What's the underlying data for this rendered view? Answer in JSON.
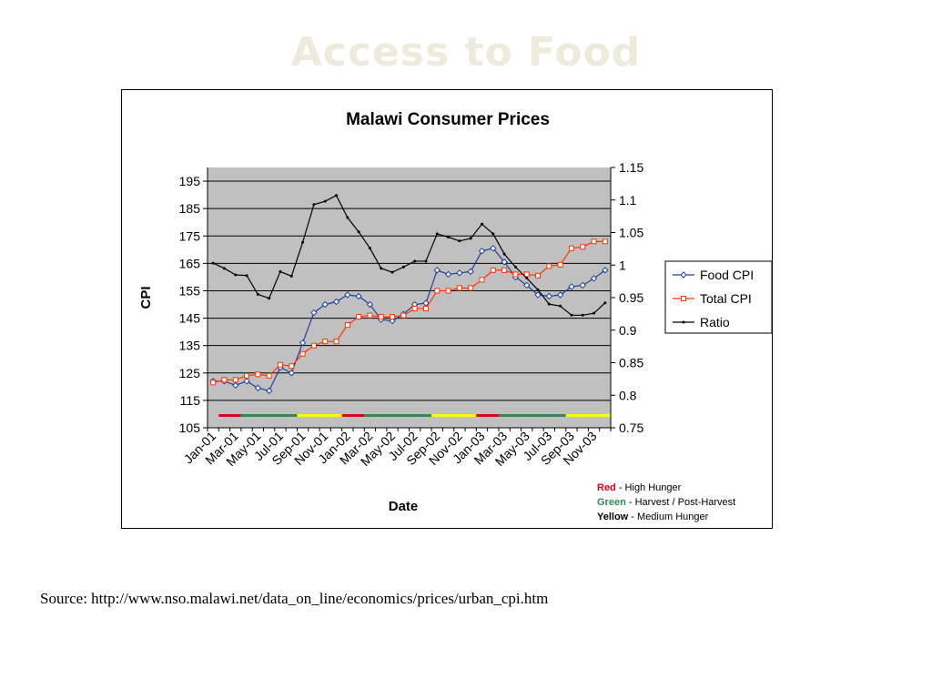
{
  "page": {
    "title": "Access to Food",
    "source": "Source: http://www.nso.malawi.net/data_on_line/economics/prices/urban_cpi.htm"
  },
  "legend_notes": [
    {
      "key": "Red",
      "text": " - High Hunger",
      "color": "#e0001b"
    },
    {
      "key": "Green",
      "text": " - Harvest / Post-Harvest",
      "color": "#2e8b57"
    },
    {
      "key": "Yellow",
      "text": " - Medium Hunger",
      "color": "#000000"
    }
  ],
  "chart_data": {
    "type": "line",
    "title": "Malawi Consumer Prices",
    "xlabel": "Date",
    "ylabel": "CPI",
    "ylim": [
      105,
      200
    ],
    "y_ticks": [
      105,
      115,
      125,
      135,
      145,
      155,
      165,
      175,
      185,
      195
    ],
    "y2lim": [
      0.75,
      1.15
    ],
    "y2_ticks": [
      "0.75",
      "0.8",
      "0.85",
      "0.9",
      "0.95",
      "1",
      "1.05",
      "1.1",
      "1.15"
    ],
    "x_tick_labels": [
      "Jan-01",
      "Mar-01",
      "May-01",
      "Jul-01",
      "Sep-01",
      "Nov-01",
      "Jan-02",
      "Mar-02",
      "May-02",
      "Jul-02",
      "Sep-02",
      "Nov-02",
      "Jan-03",
      "Mar-03",
      "May-03",
      "Jul-03",
      "Sep-03",
      "Nov-03"
    ],
    "grid": true,
    "plot_background": "#c0c0c0",
    "legend_position": "right",
    "series": [
      {
        "name": "Food CPI",
        "axis": "left",
        "color": "#1f3f9f",
        "marker": "diamond",
        "values": [
          122,
          122,
          120.5,
          122,
          119.5,
          118.5,
          127,
          125,
          136,
          147,
          150,
          151,
          153.5,
          153,
          150,
          144.5,
          144,
          146.5,
          150,
          150.5,
          162.5,
          161,
          161.5,
          162,
          169.5,
          170.5,
          165.5,
          160,
          157,
          153.5,
          153,
          153.5,
          156.5,
          157,
          159.5,
          162.5
        ]
      },
      {
        "name": "Total CPI",
        "axis": "left",
        "color": "#ff3300",
        "marker": "square",
        "values": [
          121.5,
          122.5,
          122.5,
          124,
          124.5,
          124,
          128,
          127.5,
          132,
          135,
          136.5,
          136.5,
          142.5,
          145.5,
          146,
          145.5,
          145.5,
          146,
          148.5,
          148.5,
          155,
          155,
          156,
          156,
          159,
          162.5,
          162.5,
          161,
          161,
          160.5,
          164,
          164.5,
          170.5,
          171,
          173,
          173
        ]
      },
      {
        "name": "Ratio",
        "axis": "right",
        "color": "#000000",
        "marker": "dot",
        "values": [
          1.003,
          0.995,
          0.985,
          0.984,
          0.955,
          0.949,
          0.99,
          0.983,
          1.035,
          1.093,
          1.098,
          1.107,
          1.073,
          1.051,
          1.026,
          0.995,
          0.989,
          0.997,
          1.006,
          1.006,
          1.048,
          1.043,
          1.037,
          1.041,
          1.063,
          1.048,
          1.017,
          0.997,
          0.98,
          0.962,
          0.94,
          0.937,
          0.923,
          0.923,
          0.926,
          0.942
        ]
      }
    ],
    "season_bar": [
      {
        "color": "#e0001b",
        "start": 1,
        "end": 3
      },
      {
        "color": "#2e8b57",
        "start": 3,
        "end": 8
      },
      {
        "color": "#ffff00",
        "start": 8,
        "end": 12
      },
      {
        "color": "#e0001b",
        "start": 12,
        "end": 14
      },
      {
        "color": "#2e8b57",
        "start": 14,
        "end": 20
      },
      {
        "color": "#ffff00",
        "start": 20,
        "end": 24
      },
      {
        "color": "#e0001b",
        "start": 24,
        "end": 26
      },
      {
        "color": "#2e8b57",
        "start": 26,
        "end": 32
      },
      {
        "color": "#ffff00",
        "start": 32,
        "end": 36
      }
    ]
  }
}
